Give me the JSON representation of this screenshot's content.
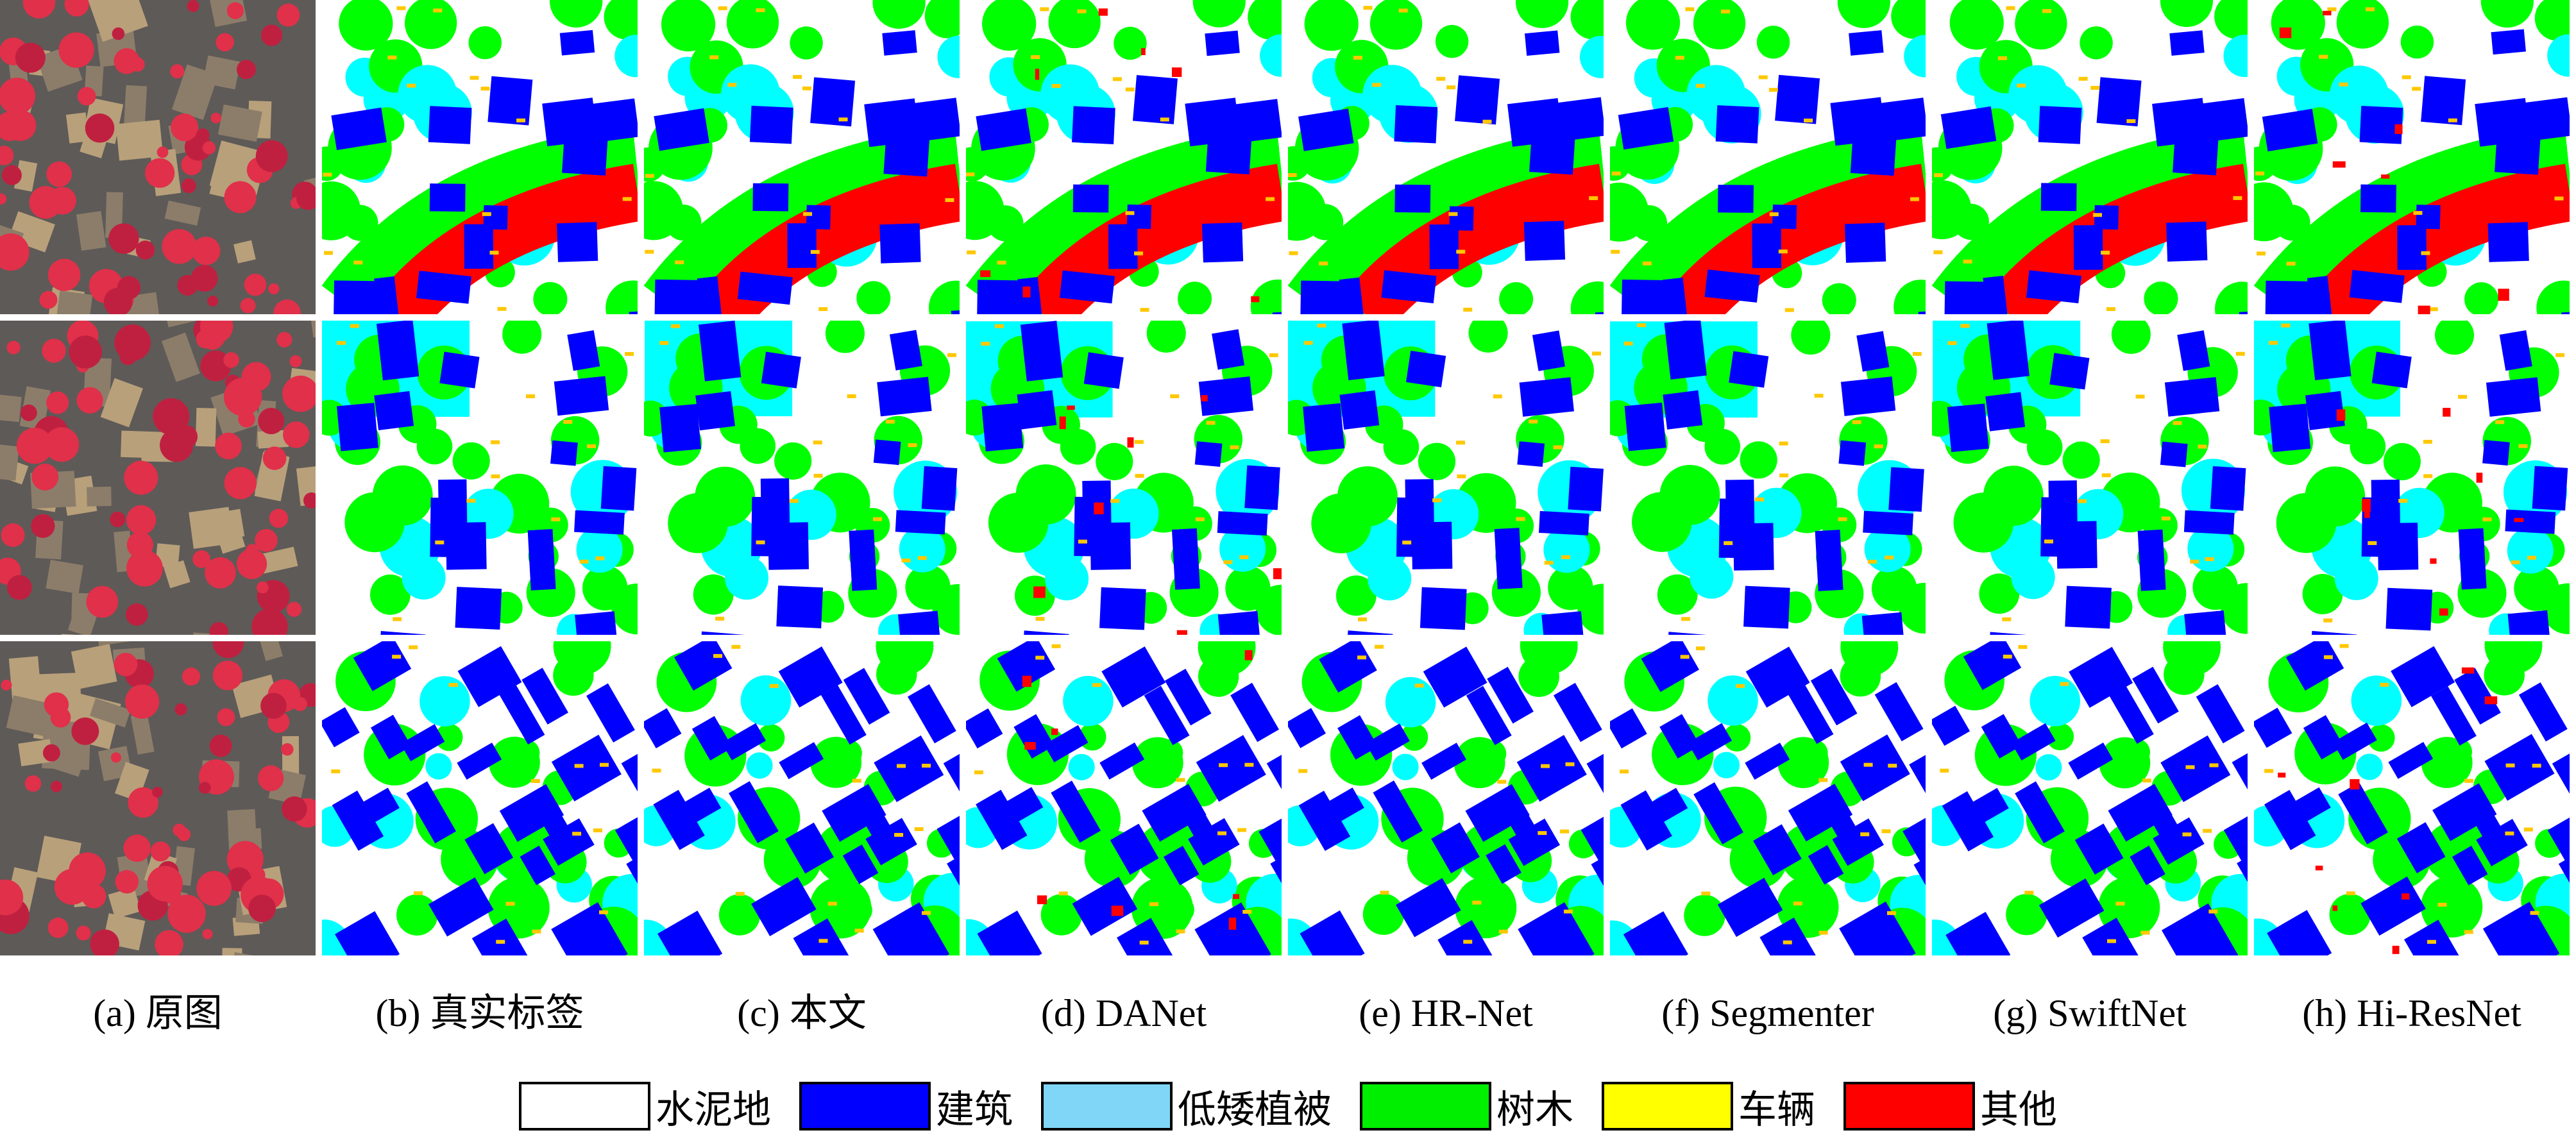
{
  "figure": {
    "captions": [
      "(a) 原图",
      "(b) 真实标签",
      "(c) 本文",
      "(d) DANet",
      "(e) HR-Net",
      "(f) Segmenter",
      "(g) SwiftNet",
      "(h) Hi-ResNet"
    ],
    "legend": [
      {
        "label": "水泥地",
        "color": "#ffffff"
      },
      {
        "label": "建筑",
        "color": "#0000ff"
      },
      {
        "label": "低矮植被",
        "color": "#7fd6f7"
      },
      {
        "label": "树木",
        "color": "#00ee00"
      },
      {
        "label": "车辆",
        "color": "#ffff00"
      },
      {
        "label": "其他",
        "color": "#ff0000"
      }
    ]
  }
}
